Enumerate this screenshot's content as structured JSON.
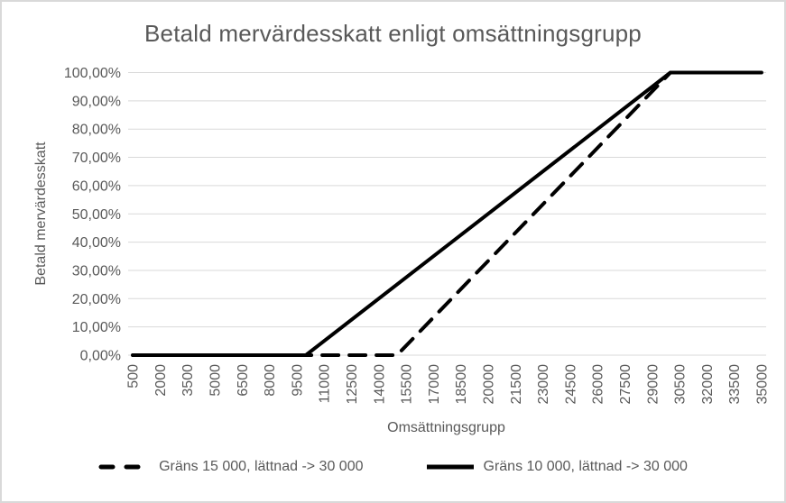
{
  "figure": {
    "background_color": "#FFFFFF",
    "border_color": "#D9D9D9",
    "text_color": "#595959",
    "gridline_color": "#D9D9D9"
  },
  "chart_data": {
    "type": "line",
    "title": "Betald mervärdesskatt enligt omsättningsgrupp",
    "xlabel": "Omsättningsgrupp",
    "ylabel": "Betald mervärdesskatt",
    "grid": "horizontal",
    "legend_position": "bottom",
    "x_range": [
      500,
      35000
    ],
    "x_step": 500,
    "x_tick_labels": [
      "500",
      "2000",
      "3500",
      "5000",
      "6500",
      "8000",
      "9500",
      "11000",
      "12500",
      "14000",
      "15500",
      "17000",
      "18500",
      "20000",
      "21500",
      "23000",
      "24500",
      "26000",
      "27500",
      "29000",
      "30500",
      "32000",
      "33500",
      "35000"
    ],
    "y_tick_labels": [
      "0,00%",
      "10,00%",
      "20,00%",
      "30,00%",
      "40,00%",
      "50,00%",
      "60,00%",
      "70,00%",
      "80,00%",
      "90,00%",
      "100,00%"
    ],
    "y_range_pct": [
      0,
      100
    ],
    "series": [
      {
        "name": "Gräns 15 000, lättnad -> 30 000",
        "style": "dashed",
        "color": "#000000",
        "points": [
          [
            500,
            0
          ],
          [
            15000,
            0
          ],
          [
            30000,
            100
          ],
          [
            35000,
            100
          ]
        ]
      },
      {
        "name": "Gräns 10 000, lättnad -> 30 000",
        "style": "solid",
        "color": "#000000",
        "points": [
          [
            500,
            0
          ],
          [
            10000,
            0
          ],
          [
            30000,
            100
          ],
          [
            35000,
            100
          ]
        ]
      }
    ]
  }
}
